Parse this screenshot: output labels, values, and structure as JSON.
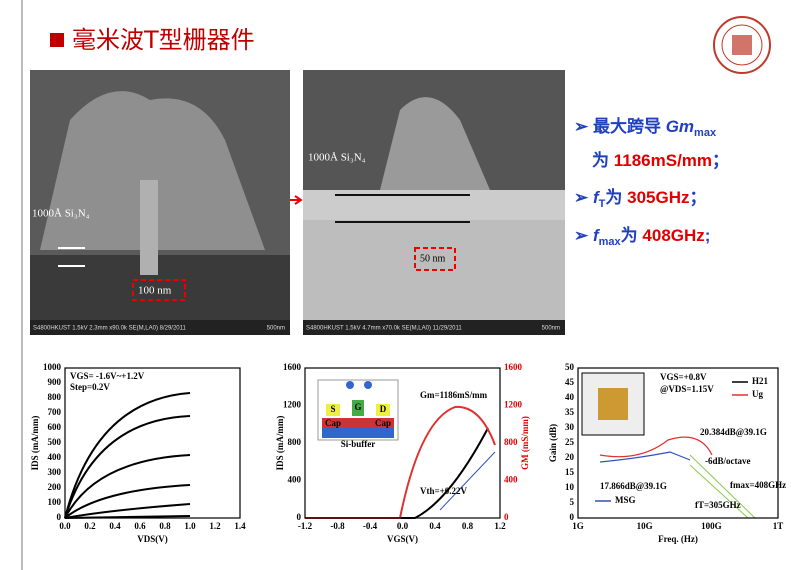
{
  "header": {
    "title": "毫米波T型栅器件"
  },
  "images": [
    {
      "labels": [
        "1000Å Si₃N₄",
        "100 nm"
      ],
      "caption": "S4800HKUST 1.5kV 2.3mm x90.0k SE(M,LA0) 8/29/2011",
      "scale": "500nm"
    },
    {
      "labels": [
        "1000Å Si₃N₄",
        "50 nm"
      ],
      "caption": "S4800HKUST 1.5kV 4.7mm x70.0k SE(M,LA0) 11/29/2011",
      "scale": "500nm"
    }
  ],
  "bullets": [
    {
      "prefix": "最大跨导 ",
      "symbol": "Gm",
      "sub": "max"
    },
    {
      "prefix": "为 ",
      "value": "1186mS/mm",
      "suffix": "；"
    },
    {
      "symbol": "f",
      "sub": "T",
      "prefix": "为 ",
      "value": "305GHz",
      "suffix": "；"
    },
    {
      "symbol": "f",
      "sub": "max",
      "prefix": "为 ",
      "value": "408GHz",
      "suffix": ";"
    }
  ],
  "plots": [
    {
      "xticks": [
        "0.0",
        "0.2",
        "0.4",
        "0.6",
        "0.8",
        "1.0",
        "1.2",
        "1.4"
      ],
      "yticks": [
        "0",
        "100",
        "200",
        "300",
        "400",
        "500",
        "600",
        "700",
        "800",
        "900",
        "1000"
      ],
      "ylabel": "IDS (mA/mm)",
      "xlabel": "VDS(V)",
      "notes": [
        "VGS= -1.6V~+1.2V",
        "Step=0.2V"
      ]
    },
    {
      "xticks": [
        "-1.2",
        "-0.8",
        "-0.4",
        "0.0",
        "0.4",
        "0.8",
        "1.2"
      ],
      "yticks": [
        "0",
        "400",
        "800",
        "1200",
        "1600"
      ],
      "y2ticks": [
        "0",
        "400",
        "800",
        "1200",
        "1600"
      ],
      "ylabel": "IDS (mA/mm)",
      "y2label": "GM (mS/mm)",
      "xlabel": "VGS(V)",
      "notes": [
        "Gm=1186mS/mm",
        "Vth=+0.22V"
      ],
      "inset": [
        "S",
        "G",
        "D",
        "Cap",
        "Cap",
        "Si-buffer"
      ]
    },
    {
      "xticks": [
        "1G",
        "10G",
        "100G",
        "1T"
      ],
      "yticks": [
        "0",
        "5",
        "10",
        "15",
        "20",
        "25",
        "30",
        "35",
        "40",
        "45",
        "50"
      ],
      "ylabel": "Gain (dB)",
      "xlabel": "Freq. (Hz)",
      "legend": [
        "H21",
        "Ug",
        "MSG"
      ],
      "notes": [
        "VGS=+0.8V",
        "@VDS=1.15V",
        "20.384dB@39.1G",
        "17.866dB@39.1G",
        "-6dB/octave",
        "fT=305GHz",
        "fmax=408GHz"
      ]
    }
  ]
}
